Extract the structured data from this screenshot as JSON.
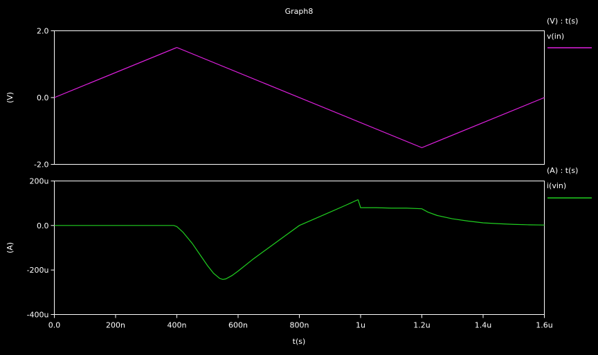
{
  "title": "Graph8",
  "colors": {
    "background": "#000000",
    "foreground": "#ffffff",
    "vin": "#e020e0",
    "ivin": "#20d020"
  },
  "chart_data": [
    {
      "type": "line",
      "ylabel": "(V)",
      "legend_header": "(V) : t(s)",
      "ylim": [
        -2.0,
        2.0
      ],
      "xlim": [
        0,
        1.6e-06
      ],
      "yticks": [
        {
          "value": 2.0,
          "label": "2.0"
        },
        {
          "value": 0.0,
          "label": "0.0"
        },
        {
          "value": -2.0,
          "label": "-2.0"
        }
      ],
      "series": [
        {
          "name": "v(in)",
          "color": "#e020e0",
          "x": [
            0,
            4e-07,
            1.2e-06,
            1.6e-06
          ],
          "y": [
            0,
            1.5,
            -1.5,
            0
          ]
        }
      ]
    },
    {
      "type": "line",
      "ylabel": "(A)",
      "xlabel": "t(s)",
      "legend_header": "(A) : t(s)",
      "ylim": [
        -0.0004,
        0.0002
      ],
      "xlim": [
        0,
        1.6e-06
      ],
      "yticks": [
        {
          "value": 0.0002,
          "label": "200u"
        },
        {
          "value": 0.0,
          "label": "0.0"
        },
        {
          "value": -0.0002,
          "label": "-200u"
        },
        {
          "value": -0.0004,
          "label": "-400u"
        }
      ],
      "xticks": [
        {
          "value": 0,
          "label": "0.0"
        },
        {
          "value": 2e-07,
          "label": "200n"
        },
        {
          "value": 4e-07,
          "label": "400n"
        },
        {
          "value": 6e-07,
          "label": "600n"
        },
        {
          "value": 8e-07,
          "label": "800n"
        },
        {
          "value": 1e-06,
          "label": "1u"
        },
        {
          "value": 1.2e-06,
          "label": "1.2u"
        },
        {
          "value": 1.4e-06,
          "label": "1.4u"
        },
        {
          "value": 1.6e-06,
          "label": "1.6u"
        }
      ],
      "series": [
        {
          "name": "i(vin)",
          "color": "#20d020",
          "x": [
            0,
            3.9e-07,
            4e-07,
            4.2e-07,
            4.5e-07,
            4.8e-07,
            5e-07,
            5.2e-07,
            5.4e-07,
            5.5e-07,
            5.6e-07,
            5.8e-07,
            6e-07,
            6.5e-07,
            7e-07,
            7.5e-07,
            8e-07,
            8.5e-07,
            9e-07,
            9.5e-07,
            9.9e-07,
            9.92e-07,
            1e-06,
            1.05e-06,
            1.1e-06,
            1.15e-06,
            1.2e-06,
            1.22e-06,
            1.25e-06,
            1.3e-06,
            1.35e-06,
            1.4e-06,
            1.45e-06,
            1.5e-06,
            1.55e-06,
            1.6e-06
          ],
          "y": [
            0,
            0,
            -5e-06,
            -3e-05,
            -8e-05,
            -0.00014,
            -0.00018,
            -0.000215,
            -0.000238,
            -0.000242,
            -0.00024,
            -0.000225,
            -0.000205,
            -0.00015,
            -0.0001,
            -5e-05,
            0,
            3e-05,
            6e-05,
            9e-05,
            0.000115,
            0.000115,
            8e-05,
            8e-05,
            7.8e-05,
            7.8e-05,
            7.5e-05,
            6e-05,
            4.5e-05,
            3e-05,
            2e-05,
            1.2e-05,
            8e-06,
            5e-06,
            3e-06,
            2e-06
          ]
        }
      ]
    }
  ]
}
